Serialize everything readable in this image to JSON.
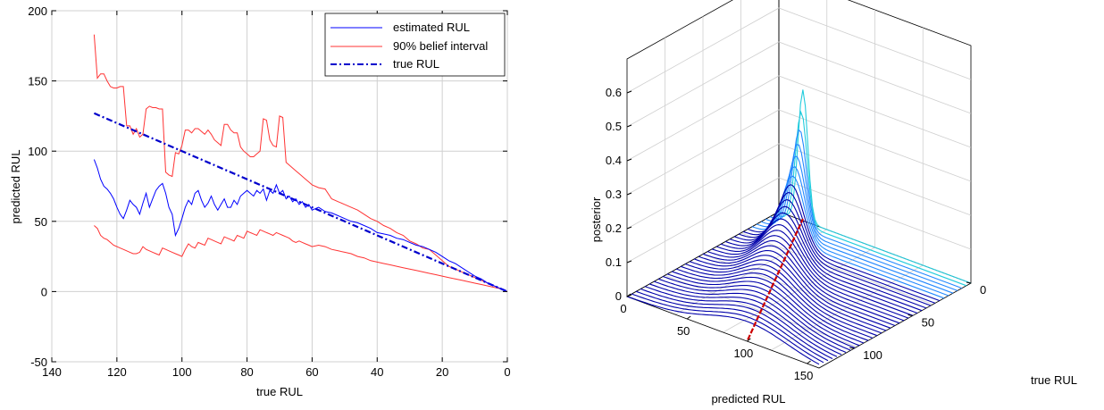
{
  "chart_data": [
    {
      "type": "line",
      "xlabel": "true RUL",
      "ylabel": "predicted RUL",
      "xlim": [
        140,
        0
      ],
      "ylim": [
        -50,
        200
      ],
      "x_ticks": [
        "140",
        "120",
        "100",
        "80",
        "60",
        "40",
        "20",
        "0"
      ],
      "y_ticks": [
        "-50",
        "0",
        "50",
        "100",
        "150",
        "200"
      ],
      "grid": true,
      "legend_position": "top-right",
      "series": [
        {
          "name": "estimated RUL",
          "color": "#0000ff",
          "style": "solid",
          "x": [
            127,
            126,
            125,
            124,
            123,
            122,
            121,
            120,
            119,
            118,
            117,
            116,
            115,
            114,
            113,
            112,
            111,
            110,
            109,
            108,
            107,
            106,
            105,
            104,
            103,
            102,
            101,
            100,
            99,
            98,
            97,
            96,
            95,
            94,
            93,
            92,
            91,
            90,
            89,
            88,
            87,
            86,
            85,
            84,
            83,
            82,
            81,
            80,
            79,
            78,
            77,
            76,
            75,
            74,
            73,
            72,
            71,
            70,
            69,
            68,
            67,
            66,
            65,
            64,
            63,
            62,
            61,
            60,
            58,
            56,
            54,
            52,
            50,
            48,
            46,
            44,
            42,
            40,
            38,
            36,
            34,
            32,
            30,
            28,
            26,
            24,
            22,
            20,
            18,
            16,
            14,
            12,
            10,
            8,
            6,
            4,
            2,
            0
          ],
          "y": [
            94,
            88,
            80,
            75,
            73,
            70,
            66,
            60,
            55,
            52,
            58,
            65,
            62,
            60,
            55,
            63,
            70,
            60,
            66,
            72,
            75,
            77,
            70,
            60,
            55,
            40,
            45,
            52,
            60,
            65,
            62,
            70,
            72,
            65,
            60,
            63,
            68,
            62,
            58,
            62,
            66,
            60,
            60,
            65,
            62,
            68,
            70,
            72,
            70,
            68,
            72,
            70,
            73,
            65,
            72,
            70,
            76,
            70,
            72,
            66,
            68,
            64,
            66,
            62,
            64,
            60,
            62,
            58,
            60,
            57,
            56,
            54,
            52,
            50,
            49,
            47,
            45,
            42,
            41,
            40,
            38,
            37,
            35,
            33,
            32,
            30,
            28,
            25,
            22,
            20,
            17,
            14,
            11,
            9,
            6,
            4,
            2,
            0
          ]
        },
        {
          "name": "90% belief interval",
          "color": "#ff3333",
          "style": "solid",
          "x": [
            127,
            126,
            125,
            124,
            123,
            122,
            121,
            120,
            119,
            118,
            117,
            116,
            115,
            114,
            113,
            112,
            111,
            110,
            109,
            108,
            107,
            106,
            105,
            104,
            103,
            102,
            101,
            100,
            99,
            98,
            97,
            96,
            95,
            94,
            93,
            92,
            91,
            90,
            89,
            88,
            87,
            86,
            85,
            84,
            83,
            82,
            81,
            80,
            79,
            78,
            77,
            76,
            75,
            74,
            73,
            72,
            71,
            70,
            69,
            68,
            67,
            66,
            65,
            64,
            63,
            62,
            61,
            60,
            58,
            56,
            54,
            52,
            50,
            48,
            46,
            44,
            42,
            40,
            38,
            36,
            34,
            32,
            30,
            28,
            26,
            24,
            22,
            20,
            18,
            16,
            14,
            12,
            10,
            8,
            6,
            4,
            2,
            0
          ],
          "y": [
            183,
            152,
            155,
            155,
            150,
            146,
            145,
            145,
            146,
            146,
            118,
            118,
            112,
            116,
            110,
            112,
            130,
            132,
            131,
            131,
            130,
            130,
            85,
            83,
            82,
            99,
            98,
            104,
            115,
            115,
            113,
            116,
            116,
            114,
            112,
            115,
            112,
            108,
            106,
            104,
            119,
            119,
            115,
            113,
            113,
            103,
            100,
            98,
            96,
            96,
            98,
            100,
            123,
            122,
            108,
            104,
            103,
            125,
            124,
            92,
            90,
            88,
            86,
            84,
            82,
            80,
            78,
            76,
            74,
            73,
            66,
            64,
            62,
            60,
            58,
            55,
            52,
            50,
            47,
            45,
            42,
            40,
            36,
            34,
            31,
            30,
            26,
            22,
            18,
            16,
            14,
            12,
            10,
            8,
            6,
            4,
            2,
            0
          ]
        },
        {
          "name": "",
          "color": "#ff3333",
          "style": "solid",
          "x": [
            127,
            126,
            125,
            124,
            123,
            122,
            121,
            120,
            119,
            118,
            117,
            116,
            115,
            114,
            113,
            112,
            111,
            110,
            109,
            108,
            107,
            106,
            105,
            104,
            103,
            102,
            101,
            100,
            99,
            98,
            97,
            96,
            95,
            94,
            93,
            92,
            91,
            90,
            89,
            88,
            87,
            86,
            85,
            84,
            83,
            82,
            81,
            80,
            79,
            78,
            77,
            76,
            75,
            74,
            73,
            72,
            71,
            70,
            69,
            68,
            67,
            66,
            65,
            64,
            63,
            62,
            61,
            60,
            58,
            56,
            54,
            52,
            50,
            48,
            46,
            44,
            42,
            40,
            38,
            36,
            34,
            32,
            30,
            28,
            26,
            24,
            22,
            20,
            18,
            16,
            14,
            12,
            10,
            8,
            6,
            4,
            2,
            0
          ],
          "y": [
            47,
            45,
            40,
            38,
            37,
            35,
            33,
            32,
            31,
            30,
            29,
            28,
            27,
            27,
            28,
            32,
            30,
            29,
            28,
            27,
            26,
            31,
            30,
            29,
            28,
            27,
            26,
            25,
            30,
            34,
            32,
            31,
            35,
            34,
            33,
            38,
            37,
            36,
            35,
            34,
            39,
            38,
            37,
            36,
            40,
            39,
            38,
            43,
            42,
            41,
            40,
            44,
            43,
            42,
            41,
            40,
            42,
            41,
            40,
            39,
            38,
            36,
            35,
            36,
            35,
            34,
            33,
            32,
            33,
            32,
            30,
            29,
            28,
            27,
            25,
            24,
            22,
            21,
            20,
            19,
            18,
            17,
            16,
            15,
            14,
            13,
            12,
            11,
            10,
            9,
            8,
            7,
            6,
            5,
            4,
            3,
            2,
            0
          ]
        },
        {
          "name": "true RUL",
          "color": "#0000cc",
          "style": "dashdot",
          "x": [
            127,
            0
          ],
          "y": [
            127,
            0
          ]
        }
      ]
    },
    {
      "type": "surface3d",
      "xlabel": "predicted RUL",
      "ylabel": "true RUL",
      "zlabel": "posterior",
      "x_ticks": [
        "0",
        "50",
        "100",
        "150"
      ],
      "y_ticks": [
        "0",
        "50",
        "100"
      ],
      "z_ticks": [
        "0",
        "0.1",
        "0.2",
        "0.3",
        "0.4",
        "0.5",
        "0.6"
      ],
      "zlim": [
        0,
        0.7
      ],
      "grid": true,
      "peak_posterior": 0.63,
      "true_rul_line_color": "#cc0000",
      "curve_color": "#0000aa"
    }
  ]
}
